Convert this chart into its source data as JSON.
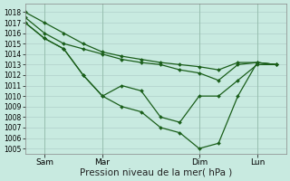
{
  "bg_color": "#c8eae0",
  "line_color": "#1a5e1a",
  "grid_color": "#b0cfca",
  "xlabel": "Pression niveau de la mer( hPa )",
  "ylim": [
    1004.5,
    1018.8
  ],
  "yticks": [
    1005,
    1006,
    1007,
    1008,
    1009,
    1010,
    1011,
    1012,
    1013,
    1014,
    1015,
    1016,
    1017,
    1018
  ],
  "xtick_labels": [
    "Sam",
    "Mar",
    "Dim",
    "Lun"
  ],
  "xtick_positions": [
    2,
    8,
    18,
    24
  ],
  "xlim": [
    0,
    27
  ],
  "line1_x": [
    0,
    2,
    4,
    6,
    8,
    10,
    12,
    14,
    16,
    18,
    20,
    22,
    24,
    26
  ],
  "line1_y": [
    1018,
    1017,
    1016,
    1015,
    1014.2,
    1013.8,
    1013.5,
    1013.2,
    1013.0,
    1012.8,
    1012.5,
    1013.2,
    1013.2,
    1013.0
  ],
  "line2_x": [
    0,
    2,
    4,
    6,
    8,
    10,
    12,
    14,
    16,
    18,
    20,
    22,
    24,
    26
  ],
  "line2_y": [
    1017.5,
    1016,
    1015,
    1014.5,
    1014.0,
    1013.5,
    1013.2,
    1013.0,
    1012.5,
    1012.2,
    1011.5,
    1013.0,
    1013.2,
    1013.0
  ],
  "line3_x": [
    0,
    2,
    4,
    6,
    8,
    10,
    12,
    14,
    16,
    18,
    20,
    22,
    24,
    26
  ],
  "line3_y": [
    1017,
    1015.5,
    1014.5,
    1012.0,
    1010.0,
    1009.0,
    1008.5,
    1007.0,
    1006.5,
    1005.0,
    1005.5,
    1010.0,
    1013.2,
    1013.0
  ],
  "line4_x": [
    0,
    2,
    4,
    6,
    8,
    10,
    12,
    14,
    16,
    18,
    20,
    22,
    24,
    26
  ],
  "line4_y": [
    1017,
    1015.5,
    1014.5,
    1012.0,
    1010.0,
    1011.0,
    1010.5,
    1008.0,
    1007.5,
    1010.0,
    1010.0,
    1011.5,
    1013.0,
    1013.0
  ],
  "vline_positions": [
    2,
    8,
    18,
    24
  ],
  "ylabel_fontsize": 5.5,
  "xlabel_fontsize": 7.5,
  "xtick_fontsize": 6.5
}
